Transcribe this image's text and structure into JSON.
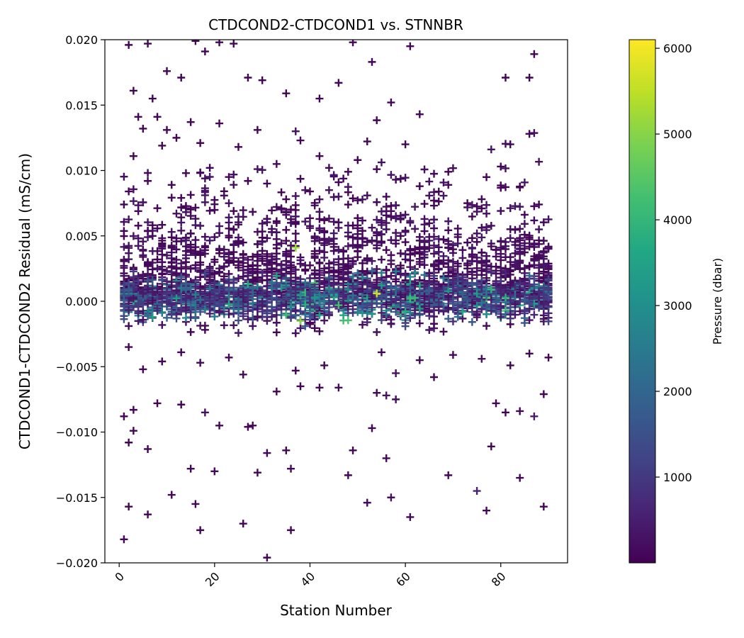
{
  "chart_data": {
    "type": "scatter",
    "title": "CTDCOND2-CTDCOND1 vs. STNNBR",
    "xlabel": "Station Number",
    "ylabel": "CTDCOND1-CTDCOND2 Residual (mS/cm)",
    "xlim": [
      -3,
      94
    ],
    "ylim": [
      -0.02,
      0.02
    ],
    "x_ticks": [
      0,
      20,
      40,
      60,
      80
    ],
    "y_ticks": [
      -0.02,
      -0.015,
      -0.01,
      -0.005,
      0.0,
      0.005,
      0.01,
      0.015,
      0.02
    ],
    "y_tick_labels": [
      "−0.020",
      "−0.015",
      "−0.010",
      "−0.005",
      "0.000",
      "0.005",
      "0.010",
      "0.015",
      "0.020"
    ],
    "marker": "+",
    "grid": false,
    "colorbar": {
      "label": "Pressure (dbar)",
      "colormap": "viridis",
      "range": [
        0,
        6100
      ],
      "ticks": [
        1000,
        2000,
        3000,
        4000,
        5000,
        6000
      ]
    },
    "points": [
      [
        1,
        -0.0182,
        50
      ],
      [
        2,
        -0.0157,
        80
      ],
      [
        6,
        -0.0163,
        60
      ],
      [
        11,
        -0.0148,
        90
      ],
      [
        16,
        -0.0155,
        100
      ],
      [
        17,
        -0.0175,
        70
      ],
      [
        20,
        -0.013,
        120
      ],
      [
        26,
        -0.017,
        60
      ],
      [
        29,
        -0.0131,
        80
      ],
      [
        31,
        -0.0196,
        50
      ],
      [
        36,
        -0.0175,
        70
      ],
      [
        48,
        -0.0133,
        90
      ],
      [
        52,
        -0.0154,
        150
      ],
      [
        57,
        -0.015,
        200
      ],
      [
        61,
        -0.0165,
        80
      ],
      [
        69,
        -0.0133,
        100
      ],
      [
        75,
        -0.0145,
        600
      ],
      [
        77,
        -0.016,
        90
      ],
      [
        84,
        -0.0135,
        70
      ],
      [
        89,
        -0.0157,
        60
      ],
      [
        2,
        -0.0108,
        80
      ],
      [
        3,
        -0.0099,
        70
      ],
      [
        6,
        -0.0113,
        60
      ],
      [
        15,
        -0.0128,
        90
      ],
      [
        21,
        -0.0095,
        100
      ],
      [
        27,
        -0.0096,
        80
      ],
      [
        31,
        -0.0116,
        60
      ],
      [
        35,
        -0.0114,
        90
      ],
      [
        36,
        -0.0128,
        120
      ],
      [
        49,
        -0.0114,
        80
      ],
      [
        53,
        -0.0097,
        70
      ],
      [
        56,
        -0.012,
        100
      ],
      [
        78,
        -0.0111,
        60
      ],
      [
        1,
        -0.0088,
        70
      ],
      [
        3,
        -0.0083,
        100
      ],
      [
        8,
        -0.0078,
        80
      ],
      [
        13,
        -0.0079,
        90
      ],
      [
        18,
        -0.0085,
        300
      ],
      [
        28,
        -0.0095,
        70
      ],
      [
        33,
        -0.0069,
        80
      ],
      [
        42,
        -0.0066,
        90
      ],
      [
        46,
        -0.0066,
        150
      ],
      [
        54,
        -0.007,
        100
      ],
      [
        56,
        -0.0072,
        300
      ],
      [
        58,
        -0.0075,
        200
      ],
      [
        66,
        -0.0058,
        80
      ],
      [
        79,
        -0.0078,
        70
      ],
      [
        81,
        -0.0085,
        60
      ],
      [
        84,
        -0.0084,
        80
      ],
      [
        87,
        -0.0088,
        500
      ],
      [
        89,
        -0.0071,
        60
      ],
      [
        2,
        -0.0035,
        80
      ],
      [
        5,
        -0.0052,
        70
      ],
      [
        9,
        -0.0046,
        90
      ],
      [
        13,
        -0.0039,
        60
      ],
      [
        17,
        -0.0047,
        100
      ],
      [
        23,
        -0.0043,
        80
      ],
      [
        26,
        -0.0056,
        120
      ],
      [
        37,
        -0.0053,
        60
      ],
      [
        38,
        -0.0065,
        70
      ],
      [
        43,
        -0.0049,
        80
      ],
      [
        55,
        -0.0039,
        90
      ],
      [
        58,
        -0.0055,
        300
      ],
      [
        63,
        -0.0045,
        80
      ],
      [
        70,
        -0.0041,
        100
      ],
      [
        76,
        -0.0044,
        200
      ],
      [
        82,
        -0.0049,
        80
      ],
      [
        86,
        -0.004,
        60
      ],
      [
        90,
        -0.0043,
        70
      ],
      [
        1,
        0.0074,
        60
      ],
      [
        2,
        0.0084,
        80
      ],
      [
        3,
        0.0111,
        70
      ],
      [
        4,
        0.0141,
        90
      ],
      [
        5,
        0.0132,
        60
      ],
      [
        6,
        0.0092,
        100
      ],
      [
        8,
        0.0141,
        70
      ],
      [
        9,
        0.0119,
        80
      ],
      [
        10,
        0.0131,
        90
      ],
      [
        11,
        0.0089,
        60
      ],
      [
        12,
        0.0125,
        80
      ],
      [
        14,
        0.0098,
        100
      ],
      [
        15,
        0.0137,
        70
      ],
      [
        17,
        0.0121,
        90
      ],
      [
        19,
        0.0102,
        60
      ],
      [
        21,
        0.0136,
        80
      ],
      [
        23,
        0.0095,
        100
      ],
      [
        25,
        0.0118,
        70
      ],
      [
        27,
        0.0092,
        90
      ],
      [
        29,
        0.0131,
        60
      ],
      [
        31,
        0.009,
        80
      ],
      [
        33,
        0.0105,
        100
      ],
      [
        35,
        0.0078,
        70
      ],
      [
        38,
        0.0123,
        90
      ],
      [
        40,
        0.0084,
        60
      ],
      [
        42,
        0.0111,
        80
      ],
      [
        44,
        0.0102,
        100
      ],
      [
        46,
        0.0091,
        70
      ],
      [
        48,
        0.0099,
        90
      ],
      [
        50,
        0.0108,
        60
      ],
      [
        54,
        0.0101,
        80
      ],
      [
        56,
        0.008,
        100
      ],
      [
        58,
        0.0093,
        70
      ],
      [
        60,
        0.012,
        90
      ],
      [
        63,
        0.0088,
        60
      ],
      [
        66,
        0.0077,
        80
      ],
      [
        69,
        0.0089,
        100
      ],
      [
        73,
        0.0075,
        70
      ],
      [
        76,
        0.0071,
        90
      ],
      [
        80,
        0.0103,
        60
      ],
      [
        82,
        0.012,
        80
      ],
      [
        84,
        0.0087,
        100
      ],
      [
        86,
        0.0128,
        70
      ],
      [
        88,
        0.0074,
        90
      ],
      [
        2,
        0.0196,
        60
      ],
      [
        3,
        0.0161,
        70
      ],
      [
        6,
        0.0197,
        80
      ],
      [
        7,
        0.0155,
        90
      ],
      [
        10,
        0.0176,
        60
      ],
      [
        13,
        0.0171,
        70
      ],
      [
        16,
        0.0199,
        80
      ],
      [
        18,
        0.0191,
        60
      ],
      [
        21,
        0.0198,
        70
      ],
      [
        24,
        0.0197,
        90
      ],
      [
        27,
        0.0171,
        80
      ],
      [
        30,
        0.0169,
        60
      ],
      [
        35,
        0.0159,
        70
      ],
      [
        42,
        0.0155,
        90
      ],
      [
        46,
        0.0167,
        80
      ],
      [
        49,
        0.0198,
        60
      ],
      [
        53,
        0.0183,
        70
      ],
      [
        57,
        0.0152,
        80
      ],
      [
        61,
        0.0195,
        90
      ],
      [
        63,
        0.0143,
        100
      ],
      [
        81,
        0.0171,
        60
      ],
      [
        86,
        0.0171,
        70
      ],
      [
        87,
        0.0189,
        80
      ]
    ],
    "band_points_note": "dense band near zero with mixed pressures"
  }
}
